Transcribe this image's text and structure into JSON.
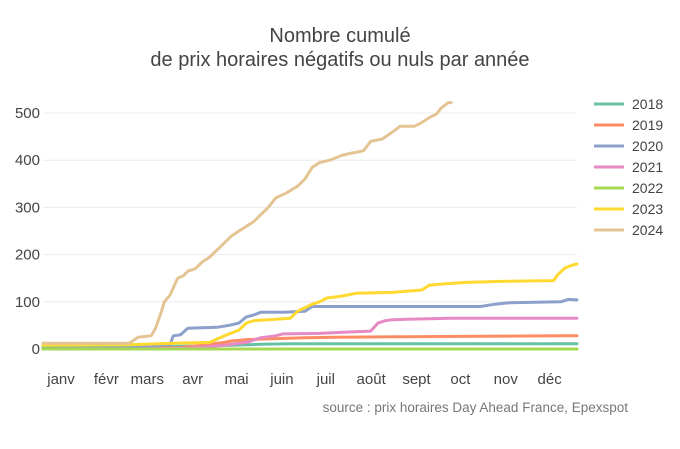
{
  "chart_data": {
    "type": "line",
    "title_line1": "Nombre cumulé",
    "title_line2": "de prix horaires négatifs ou nuls par année",
    "source": "source : prix horaires Day Ahead France, Epexspot",
    "xlabel": "",
    "ylabel": "",
    "x_ticks": [
      "janv",
      "févr",
      "mars",
      "avr",
      "mai",
      "juin",
      "juil",
      "août",
      "sept",
      "oct",
      "nov",
      "déc"
    ],
    "y_ticks": [
      0,
      100,
      200,
      300,
      400,
      500
    ],
    "ylim": [
      0,
      530
    ],
    "grid": true,
    "legend_position": "right",
    "x_unit": "day of year",
    "series": [
      {
        "name": "2018",
        "color": "#66c2a5",
        "points": [
          [
            1,
            4
          ],
          [
            30,
            4
          ],
          [
            60,
            5
          ],
          [
            100,
            6
          ],
          [
            130,
            8
          ],
          [
            150,
            10
          ],
          [
            170,
            11
          ],
          [
            366,
            11
          ]
        ]
      },
      {
        "name": "2019",
        "color": "#fc8d62",
        "points": [
          [
            1,
            0
          ],
          [
            60,
            1
          ],
          [
            95,
            3
          ],
          [
            110,
            8
          ],
          [
            125,
            14
          ],
          [
            130,
            17
          ],
          [
            140,
            20
          ],
          [
            160,
            22
          ],
          [
            180,
            24
          ],
          [
            200,
            25
          ],
          [
            250,
            26
          ],
          [
            300,
            27
          ],
          [
            355,
            28
          ],
          [
            366,
            28
          ]
        ]
      },
      {
        "name": "2020",
        "color": "#8da0cb",
        "points": [
          [
            1,
            0
          ],
          [
            60,
            2
          ],
          [
            75,
            6
          ],
          [
            88,
            10
          ],
          [
            90,
            28
          ],
          [
            95,
            30
          ],
          [
            100,
            44
          ],
          [
            120,
            46
          ],
          [
            128,
            50
          ],
          [
            135,
            55
          ],
          [
            140,
            68
          ],
          [
            145,
            72
          ],
          [
            150,
            78
          ],
          [
            165,
            78
          ],
          [
            180,
            80
          ],
          [
            185,
            90
          ],
          [
            200,
            90
          ],
          [
            300,
            90
          ],
          [
            310,
            95
          ],
          [
            320,
            98
          ],
          [
            355,
            100
          ],
          [
            360,
            105
          ],
          [
            366,
            104
          ]
        ]
      },
      {
        "name": "2021",
        "color": "#e78ac3",
        "points": [
          [
            1,
            0
          ],
          [
            60,
            0
          ],
          [
            100,
            2
          ],
          [
            125,
            8
          ],
          [
            140,
            14
          ],
          [
            150,
            24
          ],
          [
            160,
            28
          ],
          [
            165,
            32
          ],
          [
            190,
            33
          ],
          [
            210,
            36
          ],
          [
            225,
            38
          ],
          [
            230,
            55
          ],
          [
            235,
            60
          ],
          [
            240,
            62
          ],
          [
            250,
            63
          ],
          [
            280,
            65
          ],
          [
            366,
            65
          ]
        ]
      },
      {
        "name": "2022",
        "color": "#a6d854",
        "points": [
          [
            1,
            0
          ],
          [
            366,
            0
          ]
        ]
      },
      {
        "name": "2023",
        "color": "#ffd92f",
        "points": [
          [
            1,
            8
          ],
          [
            60,
            9
          ],
          [
            90,
            12
          ],
          [
            115,
            14
          ],
          [
            125,
            28
          ],
          [
            135,
            40
          ],
          [
            140,
            55
          ],
          [
            145,
            60
          ],
          [
            155,
            62
          ],
          [
            170,
            65
          ],
          [
            175,
            80
          ],
          [
            185,
            95
          ],
          [
            190,
            100
          ],
          [
            195,
            108
          ],
          [
            205,
            112
          ],
          [
            215,
            118
          ],
          [
            240,
            120
          ],
          [
            260,
            125
          ],
          [
            265,
            135
          ],
          [
            275,
            138
          ],
          [
            290,
            141
          ],
          [
            300,
            142
          ],
          [
            310,
            143
          ],
          [
            350,
            145
          ],
          [
            353,
            158
          ],
          [
            358,
            172
          ],
          [
            363,
            178
          ],
          [
            366,
            180
          ]
        ]
      },
      {
        "name": "2024",
        "color": "#e5c494",
        "points": [
          [
            1,
            12
          ],
          [
            60,
            12
          ],
          [
            66,
            25
          ],
          [
            75,
            28
          ],
          [
            78,
            45
          ],
          [
            82,
            80
          ],
          [
            84,
            100
          ],
          [
            88,
            115
          ],
          [
            93,
            150
          ],
          [
            97,
            155
          ],
          [
            100,
            165
          ],
          [
            105,
            170
          ],
          [
            110,
            185
          ],
          [
            115,
            195
          ],
          [
            120,
            210
          ],
          [
            125,
            225
          ],
          [
            130,
            240
          ],
          [
            135,
            250
          ],
          [
            140,
            260
          ],
          [
            145,
            270
          ],
          [
            150,
            285
          ],
          [
            155,
            300
          ],
          [
            160,
            320
          ],
          [
            167,
            330
          ],
          [
            175,
            345
          ],
          [
            180,
            360
          ],
          [
            185,
            385
          ],
          [
            190,
            395
          ],
          [
            197,
            400
          ],
          [
            205,
            410
          ],
          [
            212,
            415
          ],
          [
            220,
            420
          ],
          [
            225,
            440
          ],
          [
            233,
            445
          ],
          [
            240,
            460
          ],
          [
            245,
            472
          ],
          [
            255,
            472
          ],
          [
            260,
            480
          ],
          [
            265,
            490
          ],
          [
            270,
            498
          ],
          [
            273,
            510
          ],
          [
            278,
            522
          ],
          [
            280,
            522
          ]
        ]
      }
    ]
  }
}
